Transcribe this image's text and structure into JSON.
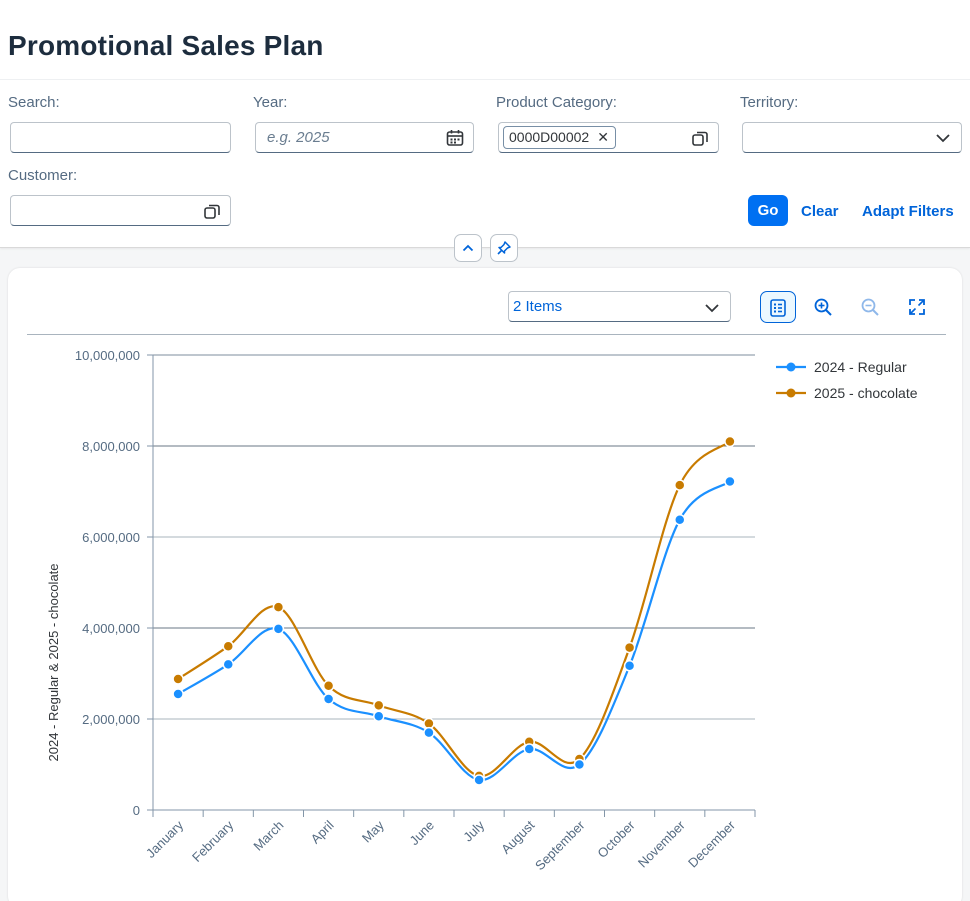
{
  "page": {
    "title": "Promotional Sales Plan"
  },
  "filters": {
    "search": {
      "label": "Search:",
      "value": ""
    },
    "year": {
      "label": "Year:",
      "placeholder": "e.g. 2025"
    },
    "product_category": {
      "label": "Product Category:",
      "token": "0000D00002"
    },
    "territory": {
      "label": "Territory:",
      "value": ""
    },
    "customer": {
      "label": "Customer:",
      "value": ""
    },
    "buttons": {
      "go": "Go",
      "clear": "Clear",
      "adapt": "Adapt Filters"
    }
  },
  "toolbar": {
    "items_select": "2 Items"
  },
  "colors": {
    "accent": "#0070f2",
    "series_2024": "#1b90ff",
    "series_2025": "#c87b00"
  },
  "chart_data": {
    "type": "line",
    "categories": [
      "January",
      "February",
      "March",
      "April",
      "May",
      "June",
      "July",
      "August",
      "September",
      "October",
      "November",
      "December"
    ],
    "series": [
      {
        "name": "2024 - Regular",
        "color": "#1b90ff",
        "values": [
          2550000,
          3200000,
          3980000,
          2440000,
          2060000,
          1700000,
          660000,
          1340000,
          1000000,
          3170000,
          6380000,
          7220000
        ]
      },
      {
        "name": "2025 - chocolate",
        "color": "#c87b00",
        "values": [
          2880000,
          3600000,
          4460000,
          2730000,
          2300000,
          1900000,
          750000,
          1500000,
          1120000,
          3570000,
          7140000,
          8100000
        ]
      }
    ],
    "ylabel": "2024 - Regular & 2025 - chocolate",
    "ylim": [
      0,
      10000000
    ],
    "yticks": [
      "0",
      "2,000,000",
      "4,000,000",
      "6,000,000",
      "8,000,000",
      "10,000,000"
    ],
    "grid": true,
    "legend": "top-right"
  }
}
